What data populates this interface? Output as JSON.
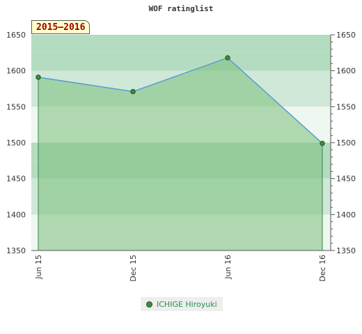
{
  "chart_data": {
    "type": "area",
    "title": "WOF ratinglist",
    "period_label": "2015–2016",
    "categories": [
      "Jun 15",
      "Dec 15",
      "Jun 16",
      "Dec 16"
    ],
    "series": [
      {
        "name": "ICHIGE Hiroyuki",
        "values": [
          1591,
          1571,
          1618,
          1499
        ]
      }
    ],
    "ylim": [
      1350,
      1650
    ],
    "yticks": [
      1350,
      1400,
      1450,
      1500,
      1550,
      1600,
      1650
    ],
    "y_axis_sides": "left and right",
    "legend_position": "bottom-center",
    "colors": {
      "line": "#5b9bd5",
      "fill": "#7bbf7b",
      "marker": "#3a8f3a",
      "band_a": "#b4dcc0",
      "band_b": "#cfe8d7",
      "band_c": "#eef7f0",
      "legend_text": "#2a8f4a"
    }
  }
}
